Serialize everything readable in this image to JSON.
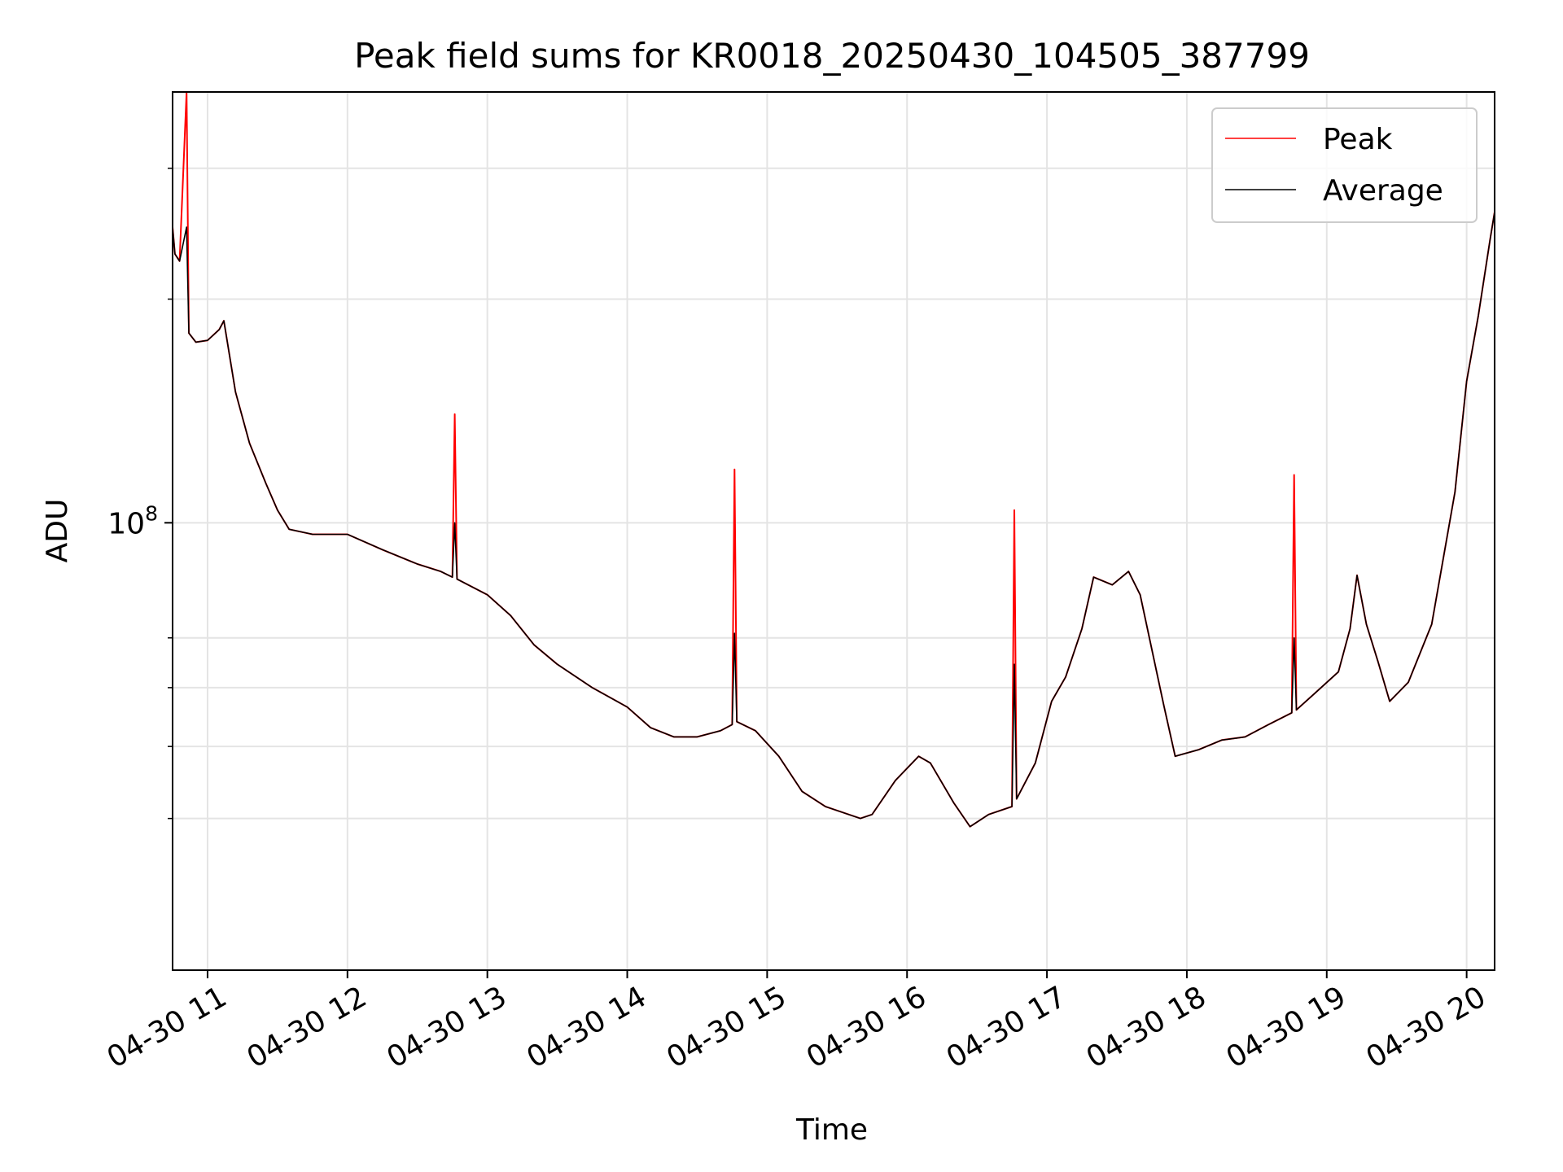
{
  "chart_data": {
    "type": "line",
    "title": "Peak field sums for KR0018_20250430_104505_387799",
    "xlabel": "Time",
    "ylabel": "ADU",
    "x_range": [
      "04-30 10:45",
      "04-30 20:12"
    ],
    "x_ticks": [
      "04-30 11",
      "04-30 12",
      "04-30 13",
      "04-30 14",
      "04-30 15",
      "04-30 16",
      "04-30 17",
      "04-30 18",
      "04-30 19",
      "04-30 20"
    ],
    "y_scale": "log",
    "y_range": [
      25000000,
      380000000
    ],
    "y_major_tick": {
      "value": 100000000,
      "base": "10",
      "exponent": "8"
    },
    "y_minor_ticks": [
      40000000,
      50000000,
      60000000,
      70000000,
      200000000,
      300000000
    ],
    "grid": true,
    "legend": "top-right",
    "series": [
      {
        "name": "Peak",
        "color": "#ff0000",
        "points": [
          [
            "04-30 10:45",
            250000000
          ],
          [
            "04-30 10:46",
            230000000
          ],
          [
            "04-30 10:48",
            225000000
          ],
          [
            "04-30 10:51",
            380000000
          ],
          [
            "04-30 10:52",
            180000000
          ],
          [
            "04-30 10:55",
            175000000
          ],
          [
            "04-30 11:00",
            176000000
          ],
          [
            "04-30 11:05",
            182000000
          ],
          [
            "04-30 11:07",
            187000000
          ],
          [
            "04-30 11:12",
            150000000
          ],
          [
            "04-30 11:18",
            128000000
          ],
          [
            "04-30 11:25",
            113000000
          ],
          [
            "04-30 11:30",
            104000000
          ],
          [
            "04-30 11:35",
            98000000
          ],
          [
            "04-30 11:45",
            96500000
          ],
          [
            "04-30 12:00",
            96500000
          ],
          [
            "04-30 12:15",
            92000000
          ],
          [
            "04-30 12:30",
            88000000
          ],
          [
            "04-30 12:40",
            86000000
          ],
          [
            "04-30 12:45",
            84500000
          ],
          [
            "04-30 12:46",
            140000000
          ],
          [
            "04-30 12:47",
            84000000
          ],
          [
            "04-30 13:00",
            80000000
          ],
          [
            "04-30 13:10",
            75000000
          ],
          [
            "04-30 13:20",
            68500000
          ],
          [
            "04-30 13:30",
            64500000
          ],
          [
            "04-30 13:45",
            60000000
          ],
          [
            "04-30 14:00",
            56500000
          ],
          [
            "04-30 14:10",
            53000000
          ],
          [
            "04-30 14:20",
            51500000
          ],
          [
            "04-30 14:30",
            51500000
          ],
          [
            "04-30 14:40",
            52500000
          ],
          [
            "04-30 14:45",
            53500000
          ],
          [
            "04-30 14:46",
            118000000
          ],
          [
            "04-30 14:47",
            54000000
          ],
          [
            "04-30 14:55",
            52500000
          ],
          [
            "04-30 15:05",
            48500000
          ],
          [
            "04-30 15:15",
            43500000
          ],
          [
            "04-30 15:25",
            41500000
          ],
          [
            "04-30 15:40",
            40000000
          ],
          [
            "04-30 15:45",
            40500000
          ],
          [
            "04-30 15:55",
            45000000
          ],
          [
            "04-30 16:05",
            48500000
          ],
          [
            "04-30 16:10",
            47500000
          ],
          [
            "04-30 16:20",
            42000000
          ],
          [
            "04-30 16:27",
            39000000
          ],
          [
            "04-30 16:35",
            40500000
          ],
          [
            "04-30 16:45",
            41500000
          ],
          [
            "04-30 16:46",
            104000000
          ],
          [
            "04-30 16:47",
            42500000
          ],
          [
            "04-30 16:55",
            47500000
          ],
          [
            "04-30 17:02",
            57500000
          ],
          [
            "04-30 17:08",
            62000000
          ],
          [
            "04-30 17:15",
            72000000
          ],
          [
            "04-30 17:20",
            84500000
          ],
          [
            "04-30 17:28",
            82500000
          ],
          [
            "04-30 17:35",
            86000000
          ],
          [
            "04-30 17:40",
            80000000
          ],
          [
            "04-30 17:50",
            57000000
          ],
          [
            "04-30 17:55",
            48500000
          ],
          [
            "04-30 18:05",
            49500000
          ],
          [
            "04-30 18:15",
            51000000
          ],
          [
            "04-30 18:25",
            51500000
          ],
          [
            "04-30 18:35",
            53500000
          ],
          [
            "04-30 18:45",
            55500000
          ],
          [
            "04-30 18:46",
            116000000
          ],
          [
            "04-30 18:47",
            56000000
          ],
          [
            "04-30 18:55",
            59000000
          ],
          [
            "04-30 19:05",
            63000000
          ],
          [
            "04-30 19:10",
            72000000
          ],
          [
            "04-30 19:13",
            85000000
          ],
          [
            "04-30 19:17",
            73000000
          ],
          [
            "04-30 19:22",
            65000000
          ],
          [
            "04-30 19:27",
            57500000
          ],
          [
            "04-30 19:35",
            61000000
          ],
          [
            "04-30 19:45",
            73000000
          ],
          [
            "04-30 19:55",
            110000000
          ],
          [
            "04-30 20:00",
            155000000
          ],
          [
            "04-30 20:05",
            190000000
          ],
          [
            "04-30 20:10",
            240000000
          ],
          [
            "04-30 20:12",
            262000000
          ]
        ]
      },
      {
        "name": "Average",
        "color": "#000000",
        "points": [
          [
            "04-30 10:45",
            250000000
          ],
          [
            "04-30 10:46",
            230000000
          ],
          [
            "04-30 10:48",
            225000000
          ],
          [
            "04-30 10:51",
            250000000
          ],
          [
            "04-30 10:52",
            180000000
          ],
          [
            "04-30 10:55",
            175000000
          ],
          [
            "04-30 11:00",
            176000000
          ],
          [
            "04-30 11:05",
            182000000
          ],
          [
            "04-30 11:07",
            187000000
          ],
          [
            "04-30 11:12",
            150000000
          ],
          [
            "04-30 11:18",
            128000000
          ],
          [
            "04-30 11:25",
            113000000
          ],
          [
            "04-30 11:30",
            104000000
          ],
          [
            "04-30 11:35",
            98000000
          ],
          [
            "04-30 11:45",
            96500000
          ],
          [
            "04-30 12:00",
            96500000
          ],
          [
            "04-30 12:15",
            92000000
          ],
          [
            "04-30 12:30",
            88000000
          ],
          [
            "04-30 12:40",
            86000000
          ],
          [
            "04-30 12:45",
            84500000
          ],
          [
            "04-30 12:46",
            100000000
          ],
          [
            "04-30 12:47",
            84000000
          ],
          [
            "04-30 13:00",
            80000000
          ],
          [
            "04-30 13:10",
            75000000
          ],
          [
            "04-30 13:20",
            68500000
          ],
          [
            "04-30 13:30",
            64500000
          ],
          [
            "04-30 13:45",
            60000000
          ],
          [
            "04-30 14:00",
            56500000
          ],
          [
            "04-30 14:10",
            53000000
          ],
          [
            "04-30 14:20",
            51500000
          ],
          [
            "04-30 14:30",
            51500000
          ],
          [
            "04-30 14:40",
            52500000
          ],
          [
            "04-30 14:45",
            53500000
          ],
          [
            "04-30 14:46",
            71000000
          ],
          [
            "04-30 14:47",
            54000000
          ],
          [
            "04-30 14:55",
            52500000
          ],
          [
            "04-30 15:05",
            48500000
          ],
          [
            "04-30 15:15",
            43500000
          ],
          [
            "04-30 15:25",
            41500000
          ],
          [
            "04-30 15:40",
            40000000
          ],
          [
            "04-30 15:45",
            40500000
          ],
          [
            "04-30 15:55",
            45000000
          ],
          [
            "04-30 16:05",
            48500000
          ],
          [
            "04-30 16:10",
            47500000
          ],
          [
            "04-30 16:20",
            42000000
          ],
          [
            "04-30 16:27",
            39000000
          ],
          [
            "04-30 16:35",
            40500000
          ],
          [
            "04-30 16:45",
            41500000
          ],
          [
            "04-30 16:46",
            64500000
          ],
          [
            "04-30 16:47",
            42500000
          ],
          [
            "04-30 16:55",
            47500000
          ],
          [
            "04-30 17:02",
            57500000
          ],
          [
            "04-30 17:08",
            62000000
          ],
          [
            "04-30 17:15",
            72000000
          ],
          [
            "04-30 17:20",
            84500000
          ],
          [
            "04-30 17:28",
            82500000
          ],
          [
            "04-30 17:35",
            86000000
          ],
          [
            "04-30 17:40",
            80000000
          ],
          [
            "04-30 17:50",
            57000000
          ],
          [
            "04-30 17:55",
            48500000
          ],
          [
            "04-30 18:05",
            49500000
          ],
          [
            "04-30 18:15",
            51000000
          ],
          [
            "04-30 18:25",
            51500000
          ],
          [
            "04-30 18:35",
            53500000
          ],
          [
            "04-30 18:45",
            55500000
          ],
          [
            "04-30 18:46",
            70000000
          ],
          [
            "04-30 18:47",
            56000000
          ],
          [
            "04-30 18:55",
            59000000
          ],
          [
            "04-30 19:05",
            63000000
          ],
          [
            "04-30 19:10",
            72000000
          ],
          [
            "04-30 19:13",
            85000000
          ],
          [
            "04-30 19:17",
            73000000
          ],
          [
            "04-30 19:22",
            65000000
          ],
          [
            "04-30 19:27",
            57500000
          ],
          [
            "04-30 19:35",
            61000000
          ],
          [
            "04-30 19:45",
            73000000
          ],
          [
            "04-30 19:55",
            110000000
          ],
          [
            "04-30 20:00",
            155000000
          ],
          [
            "04-30 20:05",
            190000000
          ],
          [
            "04-30 20:10",
            240000000
          ],
          [
            "04-30 20:12",
            262000000
          ]
        ]
      }
    ]
  }
}
